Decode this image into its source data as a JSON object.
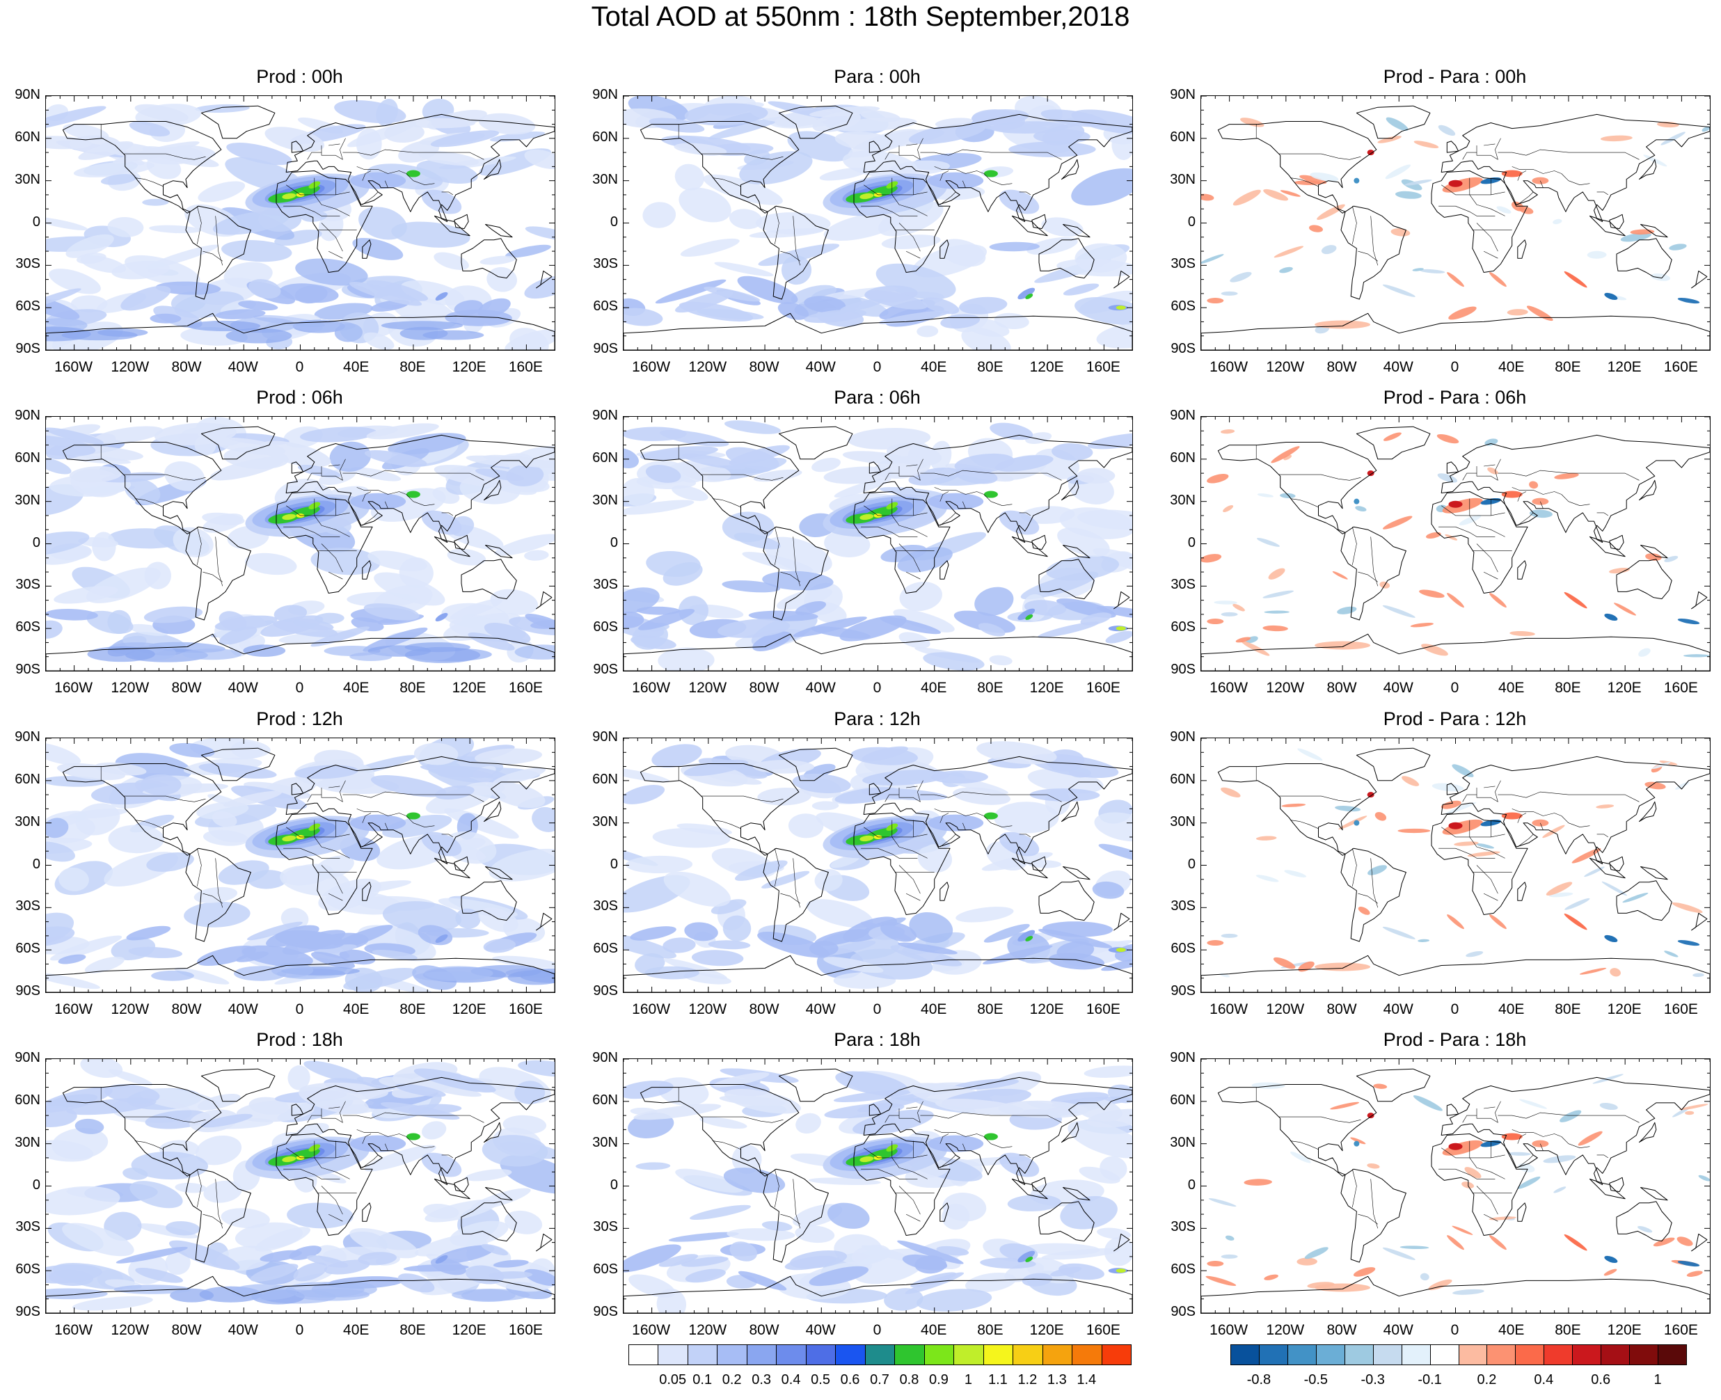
{
  "title": "Total AOD at 550nm : 18th September,2018",
  "panels": [
    {
      "title": "Prod : 00h",
      "kind": "prod"
    },
    {
      "title": "Para : 00h",
      "kind": "para"
    },
    {
      "title": "Prod - Para : 00h",
      "kind": "diff"
    },
    {
      "title": "Prod : 06h",
      "kind": "prod"
    },
    {
      "title": "Para : 06h",
      "kind": "para"
    },
    {
      "title": "Prod - Para : 06h",
      "kind": "diff"
    },
    {
      "title": "Prod : 12h",
      "kind": "prod"
    },
    {
      "title": "Para : 12h",
      "kind": "para"
    },
    {
      "title": "Prod - Para : 12h",
      "kind": "diff"
    },
    {
      "title": "Prod : 18h",
      "kind": "prod"
    },
    {
      "title": "Para : 18h",
      "kind": "para"
    },
    {
      "title": "Prod - Para : 18h",
      "kind": "diff"
    }
  ],
  "lat_labels": [
    "90N",
    "60N",
    "30N",
    "0",
    "30S",
    "60S",
    "90S"
  ],
  "lon_labels": [
    "160W",
    "120W",
    "80W",
    "40W",
    "0",
    "40E",
    "80E",
    "120E",
    "160E"
  ],
  "aod_colorbar": {
    "labels": [
      "0.05",
      "0.1",
      "0.2",
      "0.3",
      "0.4",
      "0.5",
      "0.6",
      "0.7",
      "0.8",
      "0.9",
      "1",
      "1.1",
      "1.2",
      "1.3",
      "1.4"
    ],
    "colors": [
      "#ffffff",
      "#dde6fb",
      "#c2d2f8",
      "#a7bdf5",
      "#8aa6f0",
      "#6d8cec",
      "#4e6ee6",
      "#1a55f0",
      "#1e8c8c",
      "#2fc52f",
      "#7ce61a",
      "#c0ee2a",
      "#f5f51c",
      "#f7cf15",
      "#f5a30e",
      "#f57a0a",
      "#f73c0a"
    ]
  },
  "diff_colorbar": {
    "labels": [
      "-0.8",
      "-0.5",
      "-0.3",
      "-0.1",
      "0.2",
      "0.4",
      "0.6",
      "1"
    ],
    "colors": [
      "#08519c",
      "#2171b5",
      "#4292c6",
      "#6baed6",
      "#9ecae1",
      "#c6dbef",
      "#e3f1fb",
      "#ffffff",
      "#fcbba1",
      "#fc9272",
      "#fb6a4a",
      "#ef3b2c",
      "#cb181d",
      "#a50f15",
      "#800c0c",
      "#5a0909"
    ]
  }
}
